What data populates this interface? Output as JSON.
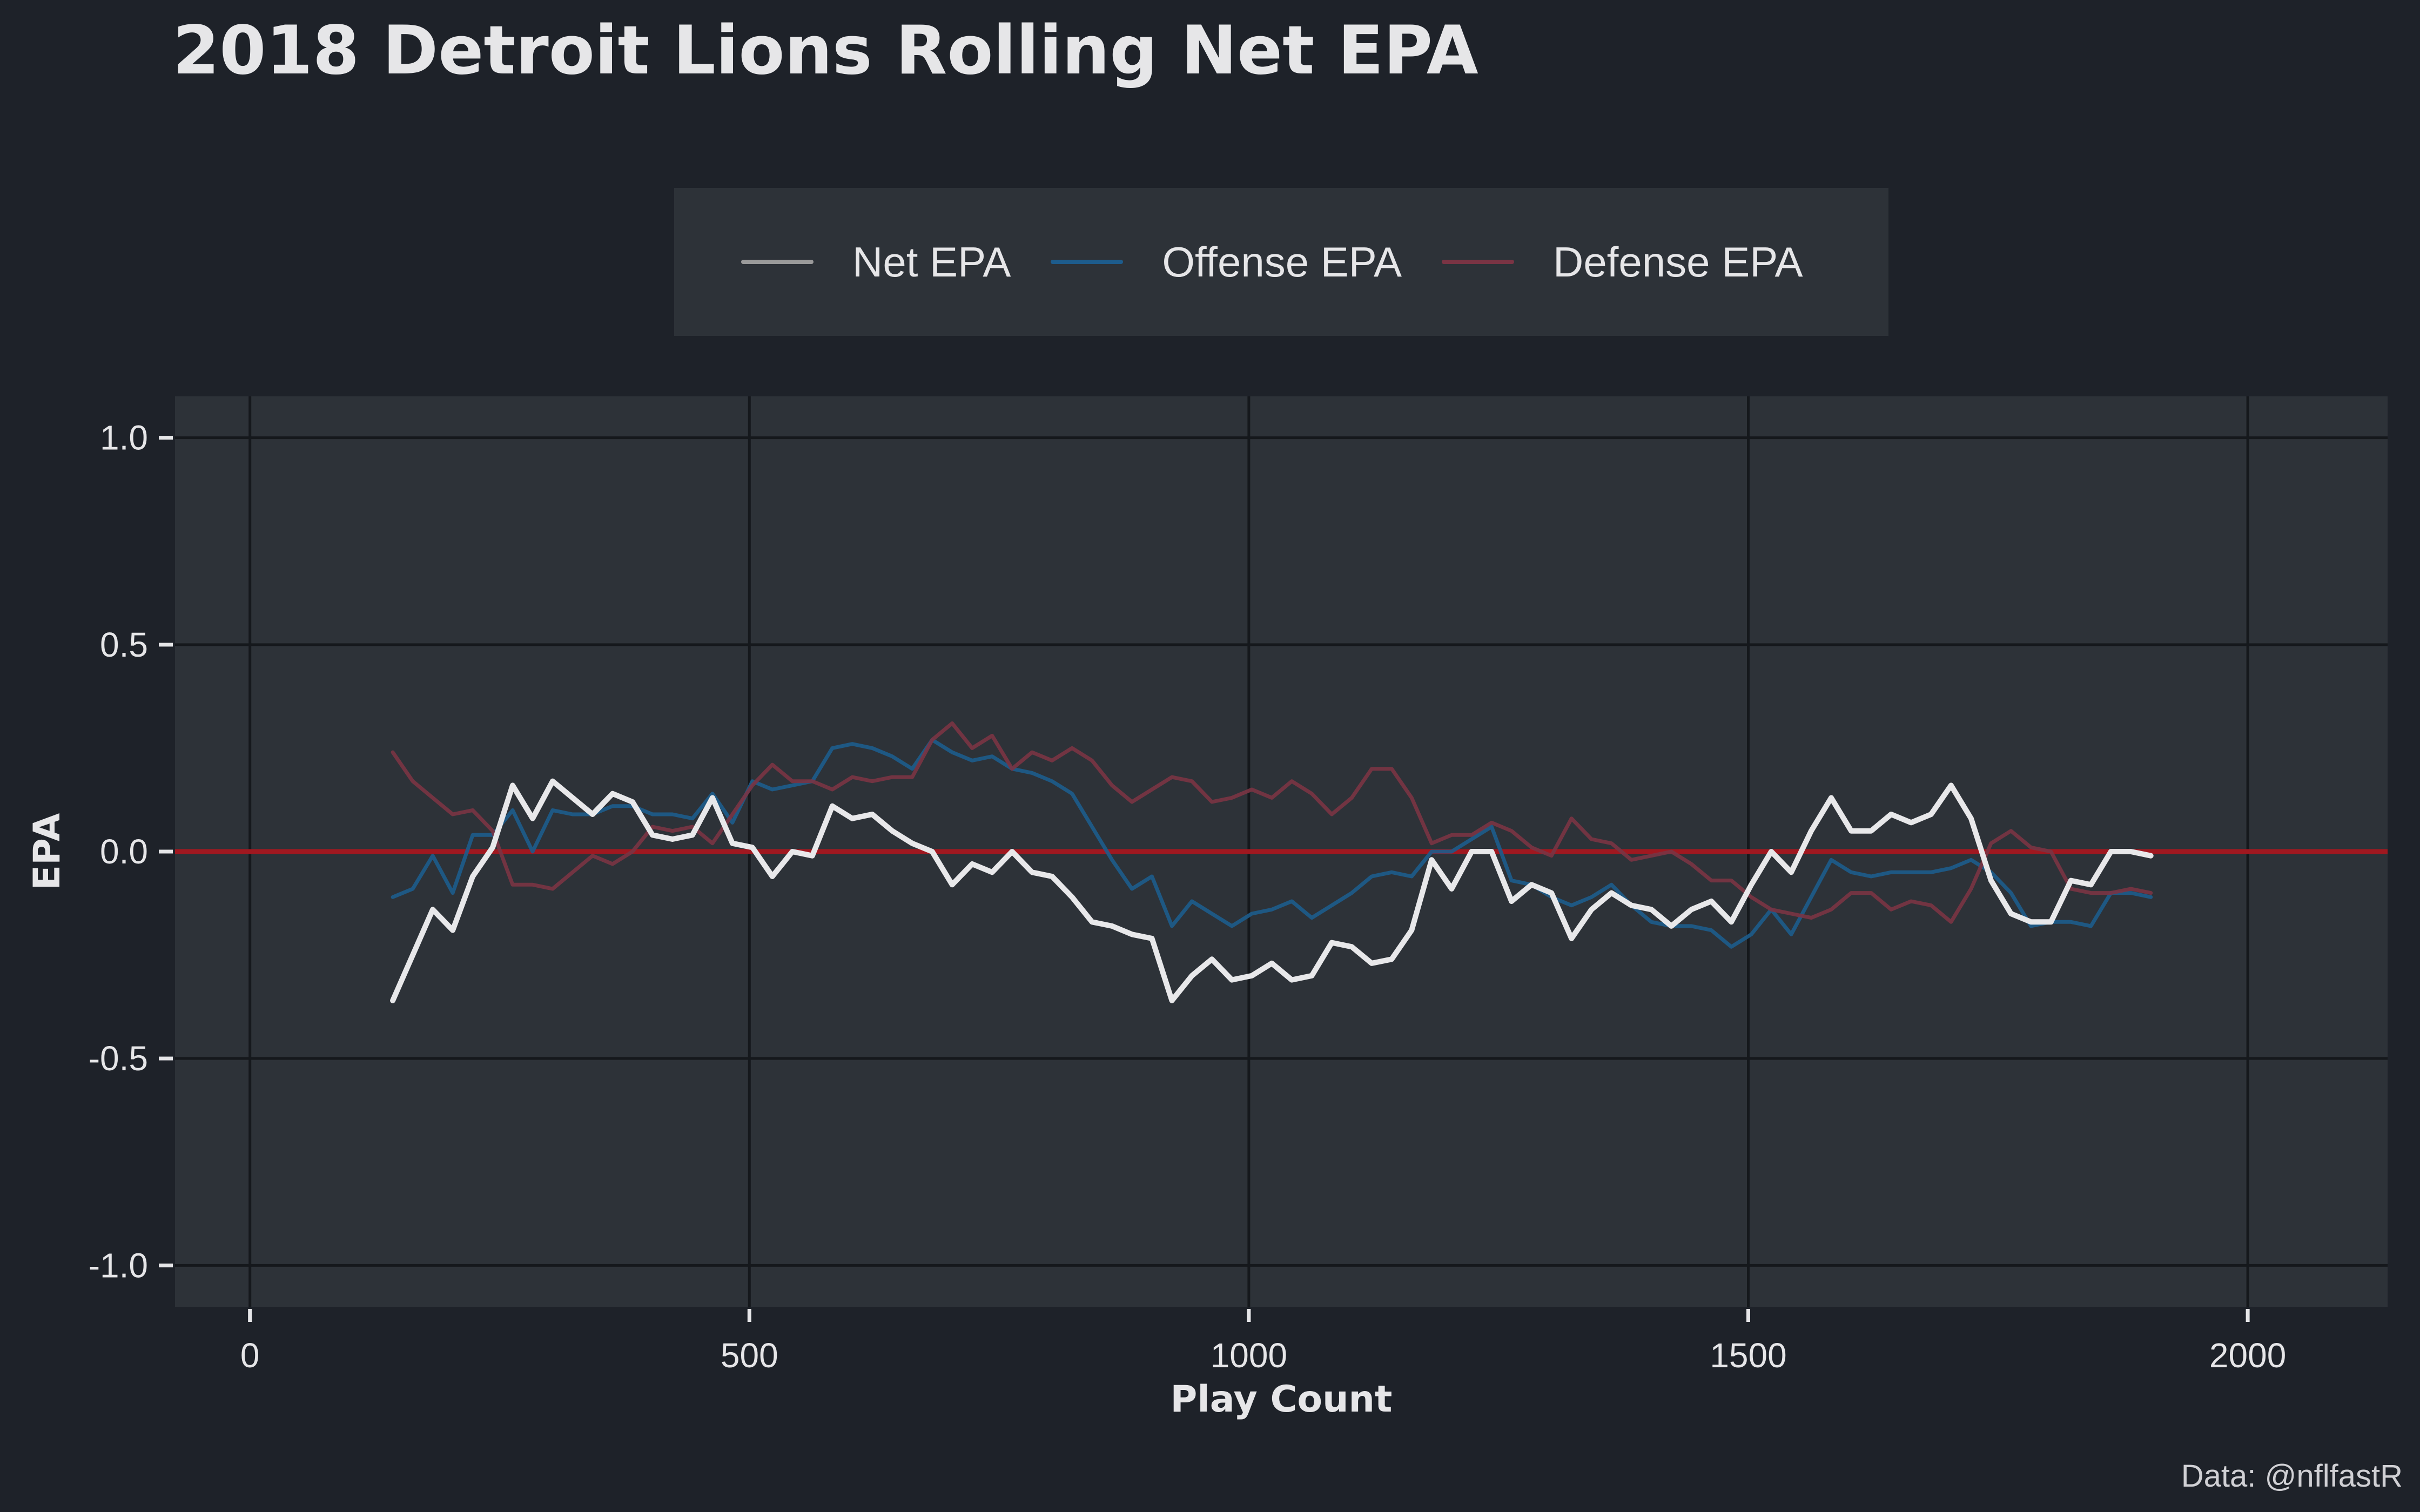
{
  "title": "2018 Detroit Lions Rolling Net EPA",
  "caption": "Data: @nflfastR",
  "colors": {
    "background": "#1e2229",
    "panel": "#2d3238",
    "grid": "#15181c",
    "net": "#e8e8ea",
    "offense": "#1d5c8c",
    "defense": "#7a3444",
    "zero_line": "#a01820",
    "text": "#e6e6e8"
  },
  "chart_data": {
    "type": "line",
    "title": "2018 Detroit Lions Rolling Net EPA",
    "xlabel": "Play Count",
    "ylabel": "EPA",
    "xlim": [
      -75,
      2140
    ],
    "ylim": [
      -1.1,
      1.1
    ],
    "xticks": [
      0,
      500,
      1000,
      1500,
      2000
    ],
    "xtick_labels": [
      "0",
      "500",
      "1000",
      "1500",
      "2000"
    ],
    "yticks": [
      1.0,
      0.5,
      0.0,
      -0.5,
      -1.0
    ],
    "ytick_labels": [
      "1.0",
      "0.5",
      "0.0",
      "-0.5",
      "-1.0"
    ],
    "reference_line": {
      "y": 0
    },
    "grid": true,
    "legend_position": "top",
    "x": [
      143,
      163,
      183,
      203,
      223,
      243,
      263,
      283,
      303,
      323,
      343,
      363,
      383,
      403,
      423,
      443,
      463,
      483,
      503,
      523,
      543,
      563,
      583,
      603,
      623,
      643,
      663,
      683,
      703,
      723,
      743,
      763,
      783,
      803,
      823,
      843,
      863,
      883,
      903,
      923,
      943,
      963,
      983,
      1003,
      1023,
      1043,
      1063,
      1083,
      1103,
      1123,
      1143,
      1163,
      1183,
      1203,
      1223,
      1243,
      1263,
      1283,
      1303,
      1323,
      1343,
      1363,
      1383,
      1403,
      1423,
      1443,
      1463,
      1483,
      1503,
      1523,
      1543,
      1563,
      1583,
      1603,
      1623,
      1643,
      1663,
      1683,
      1703,
      1723,
      1743,
      1763,
      1783,
      1803,
      1823,
      1843,
      1863,
      1883,
      1903
    ],
    "series": [
      {
        "name": "Net EPA",
        "values": [
          -0.36,
          -0.25,
          -0.14,
          -0.19,
          -0.06,
          0.01,
          0.16,
          0.08,
          0.17,
          0.13,
          0.09,
          0.14,
          0.12,
          0.04,
          0.03,
          0.04,
          0.13,
          0.02,
          0.01,
          -0.06,
          0.0,
          -0.01,
          0.11,
          0.08,
          0.09,
          0.05,
          0.02,
          0.0,
          -0.08,
          -0.03,
          -0.05,
          0.0,
          -0.05,
          -0.06,
          -0.11,
          -0.17,
          -0.18,
          -0.2,
          -0.21,
          -0.36,
          -0.3,
          -0.26,
          -0.31,
          -0.3,
          -0.27,
          -0.31,
          -0.3,
          -0.22,
          -0.23,
          -0.27,
          -0.26,
          -0.19,
          -0.02,
          -0.09,
          0.0,
          0.0,
          -0.12,
          -0.08,
          -0.1,
          -0.21,
          -0.14,
          -0.1,
          -0.13,
          -0.14,
          -0.18,
          -0.14,
          -0.12,
          -0.17,
          -0.08,
          0.0,
          -0.05,
          0.05,
          0.13,
          0.05,
          0.05,
          0.09,
          0.07,
          0.09,
          0.16,
          0.08,
          -0.07,
          -0.15,
          -0.17,
          -0.17,
          -0.07,
          -0.08,
          0.0,
          0.0,
          -0.01
        ]
      },
      {
        "name": "Offense EPA",
        "values": [
          -0.11,
          -0.09,
          -0.01,
          -0.1,
          0.04,
          0.04,
          0.1,
          0.0,
          0.1,
          0.09,
          0.09,
          0.11,
          0.11,
          0.09,
          0.09,
          0.08,
          0.14,
          0.07,
          0.17,
          0.15,
          0.16,
          0.17,
          0.25,
          0.26,
          0.25,
          0.23,
          0.2,
          0.27,
          0.24,
          0.22,
          0.23,
          0.2,
          0.19,
          0.17,
          0.14,
          0.06,
          -0.02,
          -0.09,
          -0.06,
          -0.18,
          -0.12,
          -0.15,
          -0.18,
          -0.15,
          -0.14,
          -0.12,
          -0.16,
          -0.13,
          -0.1,
          -0.06,
          -0.05,
          -0.06,
          0.0,
          0.0,
          0.03,
          0.06,
          -0.07,
          -0.08,
          -0.11,
          -0.13,
          -0.11,
          -0.08,
          -0.13,
          -0.17,
          -0.18,
          -0.18,
          -0.19,
          -0.23,
          -0.2,
          -0.14,
          -0.2,
          -0.11,
          -0.02,
          -0.05,
          -0.06,
          -0.05,
          -0.05,
          -0.05,
          -0.04,
          -0.02,
          -0.05,
          -0.1,
          -0.18,
          -0.17,
          -0.17,
          -0.18,
          -0.1,
          -0.1,
          -0.11
        ]
      },
      {
        "name": "Defense EPA",
        "values": [
          0.24,
          0.17,
          0.13,
          0.09,
          0.1,
          0.05,
          -0.08,
          -0.08,
          -0.09,
          -0.05,
          -0.01,
          -0.03,
          0.0,
          0.06,
          0.05,
          0.06,
          0.02,
          0.09,
          0.16,
          0.21,
          0.17,
          0.17,
          0.15,
          0.18,
          0.17,
          0.18,
          0.18,
          0.27,
          0.31,
          0.25,
          0.28,
          0.2,
          0.24,
          0.22,
          0.25,
          0.22,
          0.16,
          0.12,
          0.15,
          0.18,
          0.17,
          0.12,
          0.13,
          0.15,
          0.13,
          0.17,
          0.14,
          0.09,
          0.13,
          0.2,
          0.2,
          0.13,
          0.02,
          0.04,
          0.04,
          0.07,
          0.05,
          0.01,
          -0.01,
          0.08,
          0.03,
          0.02,
          -0.02,
          -0.01,
          0.0,
          -0.03,
          -0.07,
          -0.07,
          -0.11,
          -0.14,
          -0.15,
          -0.16,
          -0.14,
          -0.1,
          -0.1,
          -0.14,
          -0.12,
          -0.13,
          -0.17,
          -0.09,
          0.02,
          0.05,
          0.01,
          0.0,
          -0.09,
          -0.1,
          -0.1,
          -0.09,
          -0.1
        ]
      }
    ]
  }
}
